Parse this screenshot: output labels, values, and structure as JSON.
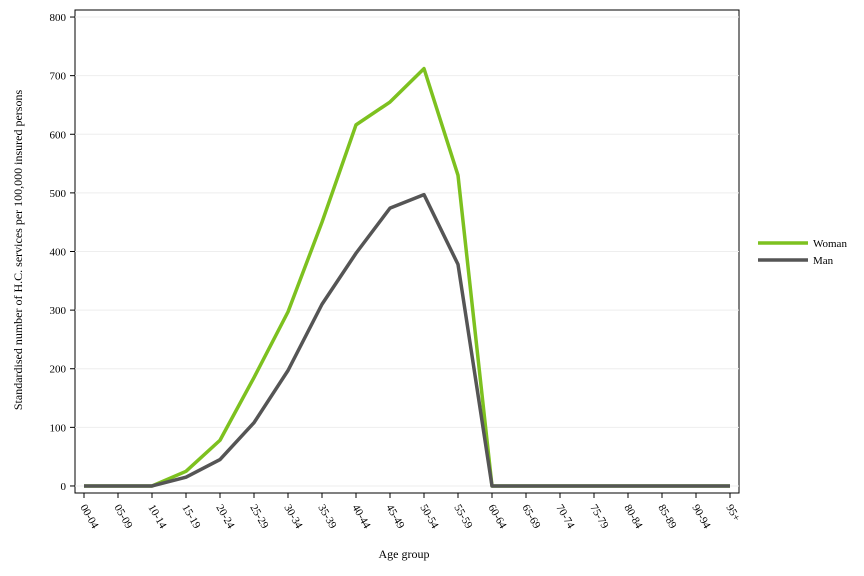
{
  "chart_data": {
    "type": "line",
    "x_label": "Age group",
    "y_label": "Standardised number of H.C. services per 100,000 insured persons",
    "categories": [
      "00-04",
      "05-09",
      "10-14",
      "15-19",
      "20-24",
      "25-29",
      "30-34",
      "35-39",
      "40-44",
      "45-49",
      "50-54",
      "55-59",
      "60-64",
      "65-69",
      "70-74",
      "75-79",
      "80-84",
      "85-89",
      "90-94",
      "95+"
    ],
    "series": [
      {
        "name": "Woman",
        "color": "#7dc11f",
        "values": [
          0,
          0,
          0,
          25,
          78,
          185,
          297,
          450,
          616,
          655,
          712,
          530,
          0,
          0,
          0,
          0,
          0,
          0,
          0,
          0
        ]
      },
      {
        "name": "Man",
        "color": "#555555",
        "values": [
          0,
          0,
          0,
          15,
          45,
          108,
          197,
          310,
          397,
          474,
          497,
          378,
          0,
          0,
          0,
          0,
          0,
          0,
          0,
          0
        ]
      }
    ],
    "ylim": [
      -12,
      812
    ],
    "yticks": [
      0,
      100,
      200,
      300,
      400,
      500,
      600,
      700,
      800
    ],
    "grid": true,
    "legend": "right"
  }
}
